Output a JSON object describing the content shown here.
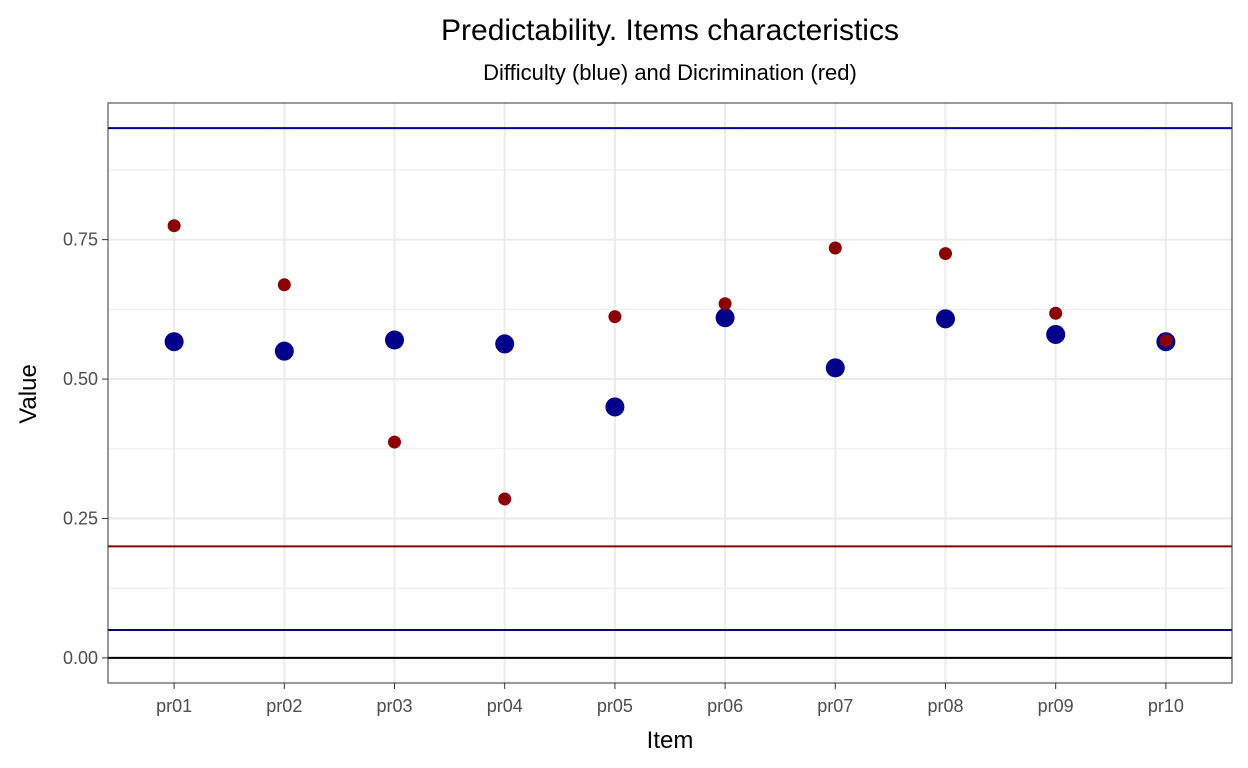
{
  "chart_data": {
    "type": "scatter",
    "title": "Predictability. Items characteristics",
    "subtitle": "Difficulty (blue) and Dicrimination (red)",
    "xlabel": "Item",
    "ylabel": "Value",
    "categories": [
      "pr01",
      "pr02",
      "pr03",
      "pr04",
      "pr05",
      "pr06",
      "pr07",
      "pr08",
      "pr09",
      "pr10"
    ],
    "ylim": [
      -0.045,
      0.995
    ],
    "yticks": [
      0.0,
      0.25,
      0.5,
      0.75
    ],
    "ytick_labels": [
      "0.00",
      "0.25",
      "0.50",
      "0.75"
    ],
    "grid": true,
    "series": [
      {
        "values": [
          0.567,
          0.55,
          0.57,
          0.563,
          0.45,
          0.61,
          0.52,
          0.608,
          0.58,
          0.567
        ],
        "color": "#00008B",
        "marker": "large-dot"
      },
      {
        "values": [
          0.775,
          0.669,
          0.387,
          0.285,
          0.612,
          0.635,
          0.735,
          0.725,
          0.618,
          0.569
        ],
        "color": "#8B0000",
        "marker": "small-dot"
      }
    ],
    "reference_lines": [
      {
        "y": 0.95,
        "color": "#00008B"
      },
      {
        "y": 0.2,
        "color": "#8B0000"
      },
      {
        "y": 0.05,
        "color": "#00008B"
      },
      {
        "y": 0.0,
        "color": "#000000"
      }
    ]
  }
}
